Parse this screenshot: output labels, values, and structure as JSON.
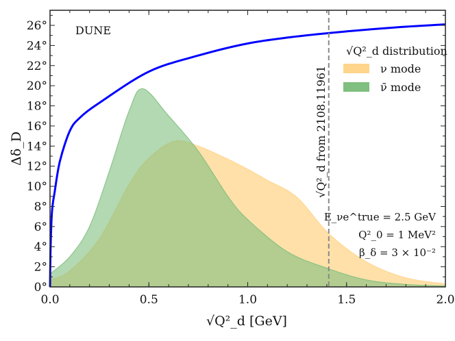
{
  "chart_data": {
    "type": "area",
    "title": "",
    "experiment_label": "DUNE",
    "xlabel": "√Q²_d [GeV]",
    "ylabel": "Δδ_D",
    "xlim": [
      0,
      2.0
    ],
    "ylim": [
      0,
      27.5
    ],
    "x_ticks": [
      "0.0",
      "0.5",
      "1.0",
      "1.5",
      "2.0"
    ],
    "x_tick_values": [
      0,
      0.5,
      1.0,
      1.5,
      2.0
    ],
    "y_ticks": [
      "0°",
      "2°",
      "4°",
      "6°",
      "8°",
      "10°",
      "12°",
      "14°",
      "16°",
      "18°",
      "20°",
      "22°",
      "24°",
      "26°"
    ],
    "y_tick_values": [
      0,
      2,
      4,
      6,
      8,
      10,
      12,
      14,
      16,
      18,
      20,
      22,
      24,
      26
    ],
    "legend_title": "√Q²_d distribution",
    "legend_position": "top-right",
    "series": [
      {
        "name": "Δδ_D",
        "kind": "line",
        "color": "#0000ff",
        "x": [
          0,
          0.003,
          0.01,
          0.024,
          0.05,
          0.1,
          0.15,
          0.25,
          0.5,
          0.75,
          1.0,
          1.25,
          1.5,
          1.75,
          2.0
        ],
        "y": [
          0,
          4,
          7.5,
          9.5,
          12.5,
          15.5,
          16.8,
          18.3,
          21.4,
          23.0,
          24.2,
          24.9,
          25.4,
          25.8,
          26.1
        ]
      },
      {
        "name": "ν mode",
        "kind": "area",
        "color": "#ffd58c",
        "x": [
          0,
          0.1,
          0.25,
          0.4,
          0.5,
          0.63,
          0.75,
          0.9,
          1.0,
          1.1,
          1.25,
          1.41,
          1.6,
          1.8,
          2.0
        ],
        "y": [
          0.7,
          1.6,
          4.8,
          10.2,
          12.8,
          14.5,
          14.0,
          12.7,
          11.7,
          10.6,
          8.9,
          5.3,
          2.5,
          0.9,
          0.3
        ]
      },
      {
        "name": "ν̄ mode",
        "kind": "area",
        "color": "#7fbf7f",
        "x": [
          0,
          0.1,
          0.2,
          0.3,
          0.4,
          0.47,
          0.6,
          0.75,
          0.9,
          1.0,
          1.2,
          1.41,
          1.6,
          1.8,
          2.0
        ],
        "y": [
          1.3,
          3.0,
          6.0,
          11.5,
          17.5,
          19.7,
          17.0,
          13.5,
          9.0,
          6.7,
          3.5,
          1.8,
          0.7,
          0.25,
          0.1
        ]
      }
    ],
    "vline": {
      "x": 1.41,
      "label": "√Q²_d from 2108.11961",
      "color": "#888888"
    },
    "annotations": [
      "E_νe^true = 2.5 GeV",
      "Q²_0 = 1 MeV²",
      "β_δ = 3 × 10⁻²"
    ]
  }
}
